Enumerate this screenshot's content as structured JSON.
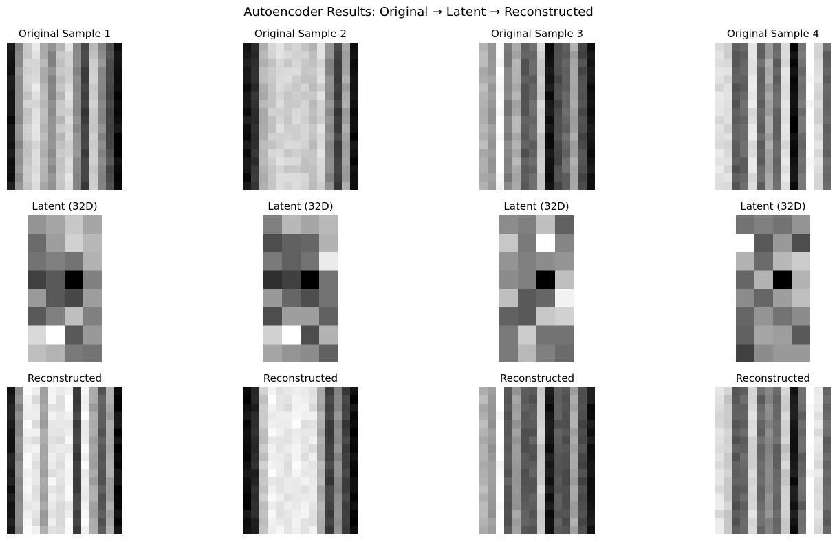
{
  "figure": {
    "title": "Autoencoder Results: Original → Latent → Reconstructed"
  },
  "chart_data": {
    "type": "heatmap",
    "colormap": "gray",
    "title": "Autoencoder Results: Original → Latent → Reconstructed",
    "panels": [
      {
        "row": "original",
        "sample": 1,
        "title": "Original Sample 1",
        "rows": 18,
        "cols": 14,
        "column_values": [
          0.08,
          0.55,
          0.8,
          0.88,
          0.7,
          0.55,
          0.75,
          0.85,
          0.55,
          0.25,
          0.78,
          0.55,
          0.3,
          0.05
        ]
      },
      {
        "row": "original",
        "sample": 2,
        "title": "Original Sample 2",
        "rows": 18,
        "cols": 14,
        "column_values": [
          0.08,
          0.2,
          0.7,
          0.8,
          0.85,
          0.82,
          0.82,
          0.8,
          0.75,
          0.85,
          0.55,
          0.25,
          0.65,
          0.05
        ]
      },
      {
        "row": "original",
        "sample": 3,
        "title": "Original Sample 3",
        "rows": 18,
        "cols": 14,
        "column_values": [
          0.7,
          0.6,
          1.0,
          0.5,
          0.68,
          0.35,
          0.4,
          0.8,
          0.08,
          0.3,
          0.4,
          0.65,
          0.3,
          0.08
        ]
      },
      {
        "row": "original",
        "sample": 4,
        "title": "Original Sample 4",
        "rows": 18,
        "cols": 14,
        "column_values": [
          0.88,
          0.85,
          0.35,
          0.4,
          0.88,
          0.4,
          0.65,
          0.4,
          0.88,
          0.05,
          0.45,
          1.0,
          0.85,
          0.4
        ]
      },
      {
        "row": "latent",
        "sample": 1,
        "title": "Latent (32D)",
        "rows": 8,
        "cols": 4,
        "values": [
          [
            0.58,
            0.65,
            0.78,
            0.65
          ],
          [
            0.42,
            0.62,
            0.82,
            0.72
          ],
          [
            0.45,
            0.5,
            0.45,
            0.7
          ],
          [
            0.25,
            0.35,
            0.0,
            0.5
          ],
          [
            0.6,
            0.35,
            0.28,
            0.62
          ],
          [
            0.35,
            0.5,
            0.75,
            0.5
          ],
          [
            0.85,
            1.0,
            0.35,
            0.6
          ],
          [
            0.75,
            0.7,
            0.48,
            0.45
          ]
        ]
      },
      {
        "row": "latent",
        "sample": 2,
        "title": "Latent (32D)",
        "rows": 8,
        "cols": 4,
        "values": [
          [
            0.5,
            0.72,
            0.65,
            0.72
          ],
          [
            0.3,
            0.38,
            0.4,
            0.7
          ],
          [
            0.48,
            0.38,
            0.45,
            0.92
          ],
          [
            0.18,
            0.25,
            0.0,
            0.45
          ],
          [
            0.6,
            0.4,
            0.3,
            0.45
          ],
          [
            0.3,
            0.62,
            0.62,
            0.38
          ],
          [
            0.82,
            1.0,
            0.3,
            0.7
          ],
          [
            0.65,
            0.58,
            0.55,
            0.38
          ]
        ]
      },
      {
        "row": "latent",
        "sample": 3,
        "title": "Latent (32D)",
        "rows": 8,
        "cols": 4,
        "values": [
          [
            0.55,
            0.5,
            0.75,
            0.38
          ],
          [
            0.78,
            0.48,
            1.0,
            0.52
          ],
          [
            0.58,
            0.5,
            0.55,
            0.58
          ],
          [
            0.55,
            0.5,
            0.0,
            0.75
          ],
          [
            0.75,
            0.35,
            0.4,
            0.95
          ],
          [
            0.38,
            0.35,
            0.78,
            0.82
          ],
          [
            0.48,
            0.8,
            0.45,
            0.45
          ],
          [
            0.48,
            0.72,
            0.5,
            0.42
          ]
        ]
      },
      {
        "row": "latent",
        "sample": 4,
        "title": "Latent (32D)",
        "rows": 8,
        "cols": 4,
        "values": [
          [
            0.45,
            0.5,
            0.45,
            0.58
          ],
          [
            1.0,
            0.35,
            0.6,
            0.3
          ],
          [
            0.7,
            0.42,
            0.72,
            0.8
          ],
          [
            0.4,
            0.7,
            0.0,
            0.7
          ],
          [
            0.55,
            0.4,
            0.62,
            0.75
          ],
          [
            0.4,
            0.58,
            0.45,
            0.55
          ],
          [
            0.38,
            0.65,
            0.62,
            0.35
          ],
          [
            0.25,
            0.55,
            0.6,
            0.6
          ]
        ]
      },
      {
        "row": "reconstructed",
        "sample": 1,
        "title": "Reconstructed",
        "rows": 18,
        "cols": 14,
        "column_values": [
          0.1,
          0.55,
          0.95,
          0.9,
          0.65,
          0.92,
          0.88,
          0.95,
          0.25,
          0.95,
          0.65,
          0.35,
          0.65,
          0.05
        ]
      },
      {
        "row": "reconstructed",
        "sample": 2,
        "title": "Reconstructed",
        "rows": 18,
        "cols": 14,
        "column_values": [
          0.05,
          0.15,
          0.78,
          0.95,
          0.92,
          0.9,
          0.95,
          0.92,
          0.9,
          0.68,
          0.25,
          0.55,
          0.25,
          0.05
        ]
      },
      {
        "row": "reconstructed",
        "sample": 3,
        "title": "Reconstructed",
        "rows": 18,
        "cols": 14,
        "column_values": [
          0.7,
          0.6,
          1.0,
          0.35,
          0.62,
          0.35,
          0.35,
          0.8,
          0.08,
          0.35,
          0.3,
          0.65,
          0.3,
          0.08
        ]
      },
      {
        "row": "reconstructed",
        "sample": 4,
        "title": "Reconstructed",
        "rows": 18,
        "cols": 14,
        "column_values": [
          0.88,
          0.8,
          0.35,
          0.4,
          0.85,
          0.4,
          0.55,
          0.4,
          0.8,
          0.08,
          0.4,
          1.0,
          0.88,
          0.4
        ]
      }
    ]
  }
}
